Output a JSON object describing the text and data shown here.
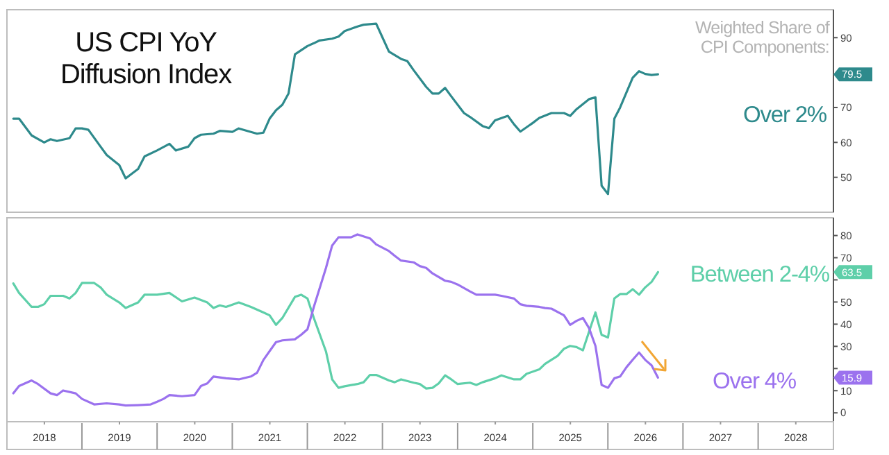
{
  "chart_data": [
    {
      "type": "line",
      "title": "US CPI YoY Diffusion Index",
      "annotations": [
        "Weighted Share of CPI Components:",
        "79.5"
      ],
      "xlim": [
        "2018-01",
        "2029-01"
      ],
      "ylim": [
        40,
        98
      ],
      "yticks": [
        50,
        60,
        70,
        90
      ],
      "tick_labels": "y",
      "grid": false,
      "legend": "right",
      "series": [
        {
          "name": "Over 2%",
          "color": "#2e8a8c",
          "x": [
            "2018-02",
            "2018-03",
            "2018-05",
            "2018-07",
            "2018-08",
            "2018-09",
            "2018-11",
            "2018-12",
            "2019-01",
            "2019-02",
            "2019-04",
            "2019-05",
            "2019-07",
            "2019-08",
            "2019-10",
            "2019-11",
            "2020-01",
            "2020-03",
            "2020-04",
            "2020-06",
            "2020-07",
            "2020-08",
            "2020-10",
            "2020-11",
            "2021-01",
            "2021-02",
            "2021-04",
            "2021-05",
            "2021-06",
            "2021-07",
            "2021-08",
            "2021-09",
            "2021-10",
            "2021-11",
            "2022-01",
            "2022-02",
            "2022-03",
            "2022-05",
            "2022-06",
            "2022-07",
            "2022-09",
            "2022-10",
            "2022-12",
            "2023-01",
            "2023-02",
            "2023-04",
            "2023-05",
            "2023-06",
            "2023-08",
            "2023-09",
            "2023-10",
            "2023-11",
            "2023-12",
            "2024-02",
            "2024-03",
            "2024-05",
            "2024-06",
            "2024-07",
            "2024-09",
            "2024-10",
            "2024-11",
            "2025-01",
            "2025-02",
            "2025-04",
            "2025-06",
            "2025-07",
            "2025-08",
            "2025-10",
            "2025-11",
            "2025-12",
            "2026-01",
            "2026-02",
            "2026-03",
            "2026-05",
            "2026-06",
            "2026-07",
            "2026-08",
            "2026-09"
          ],
          "values": [
            66.8,
            66.8,
            62,
            60,
            60.9,
            60.4,
            61.2,
            64,
            64,
            63.6,
            58.8,
            56.4,
            53.5,
            49.7,
            52.4,
            56,
            57.7,
            59.6,
            57.7,
            58.8,
            61.2,
            62.2,
            62.5,
            63.3,
            63,
            64,
            63,
            62.5,
            62.8,
            66.8,
            69.2,
            70.8,
            74,
            85.2,
            87.6,
            88.4,
            89.2,
            89.7,
            90.3,
            91.9,
            93.2,
            93.7,
            94,
            90,
            86,
            83.9,
            83.3,
            80.7,
            75.9,
            74,
            74,
            75.6,
            73.2,
            68.4,
            67.3,
            64.7,
            64.1,
            66.3,
            67.6,
            65.2,
            63.1,
            65.6,
            67,
            68.4,
            68.4,
            67.6,
            69.5,
            72.4,
            72.9,
            47.6,
            45.2,
            66.8,
            70,
            78.5,
            80.4,
            79.6,
            79.3,
            79.5
          ]
        }
      ]
    },
    {
      "type": "line",
      "annotations": [
        "63.5",
        "15.9"
      ],
      "xlim": [
        "2018-01",
        "2029-01"
      ],
      "ylim": [
        -4,
        88
      ],
      "yticks": [
        0,
        10,
        {
          "value": 20,
          "label": null
        },
        30,
        40,
        50,
        {
          "value": 60,
          "label": null
        },
        70,
        80
      ],
      "grid": false,
      "legend": "right",
      "xticks": [
        {
          "value": "2018-07-02",
          "label": "2018"
        },
        {
          "value": "2019-07-02",
          "label": "2019"
        },
        {
          "value": "2020-07-02",
          "label": "2020"
        },
        {
          "value": "2021-07-02",
          "label": "2021"
        },
        {
          "value": "2022-07-02",
          "label": "2022"
        },
        {
          "value": "2023-07-02",
          "label": "2023"
        },
        {
          "value": "2024-07-02",
          "label": "2024"
        },
        {
          "value": "2025-07-02",
          "label": "2025"
        },
        {
          "value": "2026-07-02",
          "label": "2026"
        },
        {
          "value": "2027-07-02",
          "label": "2027"
        },
        {
          "value": "2028-07-02",
          "label": "2028"
        }
      ],
      "series": [
        {
          "name": "Between 2-4%",
          "color": "#5ecfa9",
          "x": [
            "2018-02",
            "2018-03",
            "2018-05",
            "2018-06",
            "2018-07",
            "2018-08",
            "2018-10",
            "2018-11",
            "2018-12",
            "2019-01",
            "2019-03",
            "2019-04",
            "2019-05",
            "2019-07",
            "2019-08",
            "2019-10",
            "2019-11",
            "2020-01",
            "2020-03",
            "2020-05",
            "2020-07",
            "2020-09",
            "2020-10",
            "2020-11",
            "2020-12",
            "2021-02",
            "2021-04",
            "2021-06",
            "2021-07",
            "2021-08",
            "2021-09",
            "2021-11",
            "2021-12",
            "2022-01",
            "2022-02",
            "2022-04",
            "2022-05",
            "2022-06",
            "2022-07",
            "2022-09",
            "2022-10",
            "2022-11",
            "2022-12",
            "2023-02",
            "2023-03",
            "2023-04",
            "2023-06",
            "2023-07",
            "2023-08",
            "2023-09",
            "2023-10",
            "2023-11",
            "2023-12",
            "2024-01",
            "2024-03",
            "2024-04",
            "2024-05",
            "2024-07",
            "2024-08",
            "2024-10",
            "2024-11",
            "2024-12",
            "2025-02",
            "2025-03",
            "2025-05",
            "2025-06",
            "2025-07",
            "2025-08",
            "2025-09",
            "2025-11",
            "2025-12",
            "2026-01",
            "2026-02",
            "2026-03",
            "2026-04",
            "2026-05",
            "2026-06",
            "2026-07",
            "2026-08",
            "2026-09"
          ],
          "values": [
            58.4,
            54.1,
            47.8,
            47.8,
            49,
            52.8,
            52.8,
            51.6,
            54.1,
            58.6,
            58.6,
            56.6,
            53.3,
            49.8,
            47.3,
            49.8,
            53.3,
            53.3,
            54.1,
            50.3,
            52,
            49.8,
            47.3,
            48.5,
            47.8,
            49.8,
            47.8,
            45.3,
            44,
            39.7,
            42.8,
            52.3,
            53.3,
            51.6,
            42.8,
            27.7,
            15.1,
            11.3,
            12,
            13,
            13.8,
            17.1,
            17.1,
            14.6,
            13.8,
            15.1,
            13.6,
            13,
            11,
            11.3,
            13.3,
            16.9,
            15.1,
            13,
            13.6,
            12.6,
            13.8,
            15.6,
            16.9,
            15.1,
            15.1,
            17.6,
            19.6,
            22.1,
            25.7,
            28.9,
            30.2,
            29.7,
            28.2,
            45.3,
            35.2,
            34,
            51.6,
            53.6,
            53.6,
            55.8,
            53.3,
            56.6,
            59.1,
            63.5
          ]
        },
        {
          "name": "Over 4%",
          "color": "#9b72ee",
          "x": [
            "2018-02",
            "2018-03",
            "2018-05",
            "2018-06",
            "2018-08",
            "2018-09",
            "2018-10",
            "2018-12",
            "2019-01",
            "2019-03",
            "2019-05",
            "2019-07",
            "2019-08",
            "2019-10",
            "2019-12",
            "2020-01",
            "2020-02",
            "2020-03",
            "2020-05",
            "2020-07",
            "2020-08",
            "2020-09",
            "2020-10",
            "2020-12",
            "2021-02",
            "2021-04",
            "2021-05",
            "2021-06",
            "2021-08",
            "2021-09",
            "2021-11",
            "2021-12",
            "2022-01",
            "2022-02",
            "2022-04",
            "2022-05",
            "2022-06",
            "2022-07",
            "2022-08",
            "2022-09",
            "2022-11",
            "2022-12",
            "2023-02",
            "2023-03",
            "2023-04",
            "2023-06",
            "2023-07",
            "2023-08",
            "2023-09",
            "2023-11",
            "2023-12",
            "2024-01",
            "2024-03",
            "2024-04",
            "2024-07",
            "2024-08",
            "2024-10",
            "2024-11",
            "2024-12",
            "2025-02",
            "2025-03",
            "2025-04",
            "2025-06",
            "2025-07",
            "2025-08",
            "2025-09",
            "2025-10",
            "2025-11",
            "2025-12",
            "2026-01",
            "2026-02",
            "2026-03",
            "2026-04",
            "2026-05",
            "2026-06",
            "2026-07",
            "2026-08",
            "2026-09"
          ],
          "values": [
            8.8,
            12.1,
            14.6,
            13,
            8.8,
            8,
            10.1,
            8.8,
            6.3,
            3.8,
            4.3,
            3.8,
            3.3,
            3.5,
            3.8,
            5,
            6.3,
            8,
            7.5,
            8,
            12.1,
            13.3,
            16.4,
            15.6,
            15.1,
            16.4,
            18.1,
            23.9,
            31.9,
            32.7,
            33.2,
            35.2,
            37.7,
            47.8,
            65.4,
            75.5,
            79.2,
            79.2,
            79.2,
            80.5,
            78.7,
            76,
            73,
            70.9,
            68.7,
            67.9,
            66.2,
            65.4,
            62.9,
            59.6,
            59.1,
            57.9,
            54.8,
            53.3,
            53.3,
            52.8,
            51.6,
            49,
            48.3,
            47.8,
            47.3,
            47,
            44,
            39.7,
            41.5,
            42.8,
            38.2,
            30.2,
            12.6,
            11.3,
            15.6,
            16.4,
            20.6,
            23.9,
            27.2,
            23.9,
            21.4,
            15.9
          ]
        }
      ]
    }
  ]
}
